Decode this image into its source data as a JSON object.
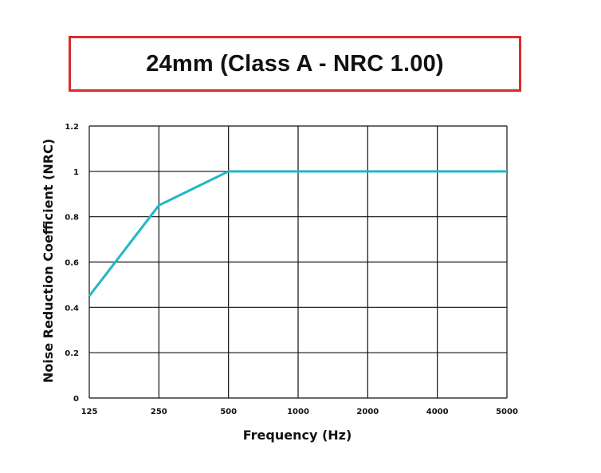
{
  "chart_data": {
    "type": "line",
    "title": "24mm (Class A - NRC 1.00)",
    "xlabel": "Frequency (Hz)",
    "ylabel": "Noise Reduction Coefficient (NRC)",
    "categories": [
      "125",
      "250",
      "500",
      "1000",
      "2000",
      "4000",
      "5000"
    ],
    "y_ticks": [
      "0",
      "0.2",
      "0.4",
      "0.6",
      "0.8",
      "1",
      "1.2"
    ],
    "ylim": [
      0,
      1.2
    ],
    "grid": true,
    "series": [
      {
        "values": [
          0.45,
          0.85,
          1.0,
          1.0,
          1.0,
          1.0,
          1.0
        ],
        "color": "#1fb8c6"
      }
    ],
    "colors": {
      "title_border": "#d92b2b",
      "grid": "#111111"
    }
  }
}
